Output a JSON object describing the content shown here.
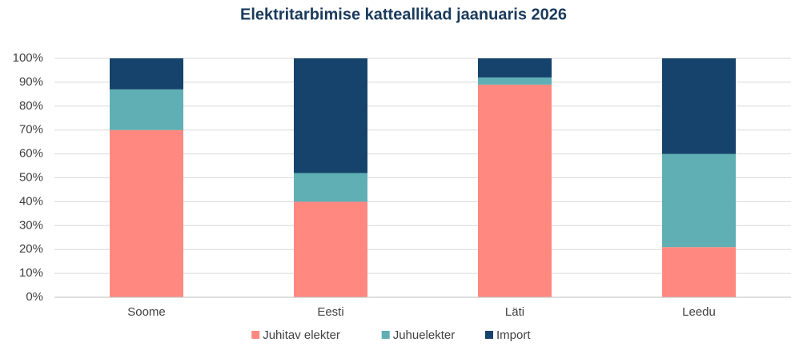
{
  "chart_data": {
    "type": "stacked_bar",
    "title": "Elektritarbimise katteallikad jaanuaris 2026",
    "categories": [
      "Soome",
      "Eesti",
      "Läti",
      "Leedu"
    ],
    "series": [
      {
        "name": "Juhitav elekter",
        "color": "#ff8880",
        "values": [
          70,
          40,
          89,
          21
        ]
      },
      {
        "name": "Juhuelekter",
        "color": "#5fafb4",
        "values": [
          17,
          12,
          3,
          39
        ]
      },
      {
        "name": "Import",
        "color": "#16436b",
        "values": [
          13,
          48,
          8,
          40
        ]
      }
    ],
    "ylim": [
      0,
      100
    ],
    "yticks": [
      {
        "value": 0,
        "label": "0%"
      },
      {
        "value": 10,
        "label": "10%"
      },
      {
        "value": 20,
        "label": "20%"
      },
      {
        "value": 30,
        "label": "30%"
      },
      {
        "value": 40,
        "label": "40%"
      },
      {
        "value": 50,
        "label": "50%"
      },
      {
        "value": 60,
        "label": "60%"
      },
      {
        "value": 70,
        "label": "70%"
      },
      {
        "value": 80,
        "label": "80%"
      },
      {
        "value": 90,
        "label": "90%"
      },
      {
        "value": 100,
        "label": "100%"
      }
    ],
    "grid": true,
    "legend": "bottom"
  }
}
